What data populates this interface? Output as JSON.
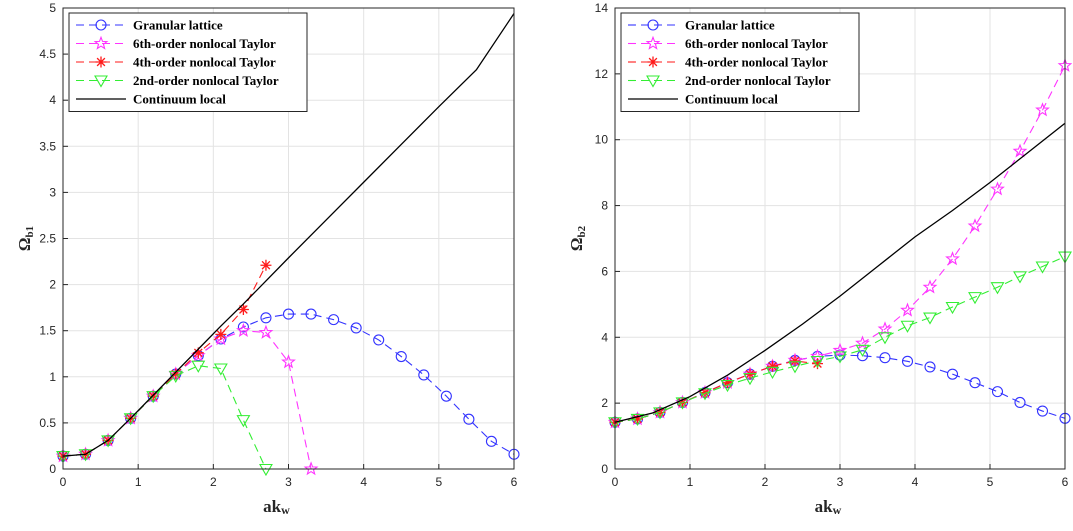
{
  "chart_data": [
    {
      "type": "line",
      "xlabel": "ak",
      "xlabel_sub": "w",
      "ylabel": "Ω",
      "ylabel_sub": "b1",
      "xlim": [
        0,
        6
      ],
      "ylim": [
        0,
        5
      ],
      "xticks": [
        0,
        1,
        2,
        3,
        4,
        5,
        6
      ],
      "xtick_labels": [
        "0",
        "1",
        "2",
        "3",
        "4",
        "5",
        "6"
      ],
      "yticks": [
        0,
        0.5,
        1,
        1.5,
        2,
        2.5,
        3,
        3.5,
        4,
        4.5,
        5
      ],
      "ytick_labels": [
        "0",
        "0.5",
        "1",
        "1.5",
        "2",
        "2.5",
        "3",
        "3.5",
        "4",
        "4.5",
        "5"
      ],
      "grid": true,
      "legend_position": "top-left",
      "series": [
        {
          "name": "Granular lattice",
          "color": "#3333ff",
          "marker": "circle",
          "dashed": true,
          "x": [
            0,
            0.3,
            0.6,
            0.9,
            1.2,
            1.5,
            1.8,
            2.1,
            2.4,
            2.7,
            3.0,
            3.3,
            3.6,
            3.9,
            4.2,
            4.5,
            4.8,
            5.1,
            5.4,
            5.7,
            6.0
          ],
          "y": [
            0.14,
            0.16,
            0.31,
            0.55,
            0.79,
            1.03,
            1.23,
            1.41,
            1.54,
            1.64,
            1.68,
            1.68,
            1.62,
            1.53,
            1.4,
            1.22,
            1.02,
            0.79,
            0.54,
            0.3,
            0.16
          ]
        },
        {
          "name": "6th-order nonlocal Taylor",
          "color": "#ff33ff",
          "marker": "star",
          "dashed": true,
          "x": [
            0,
            0.3,
            0.6,
            0.9,
            1.2,
            1.5,
            1.8,
            2.1,
            2.4,
            2.7,
            3.0,
            3.3
          ],
          "y": [
            0.14,
            0.16,
            0.31,
            0.55,
            0.79,
            1.03,
            1.23,
            1.41,
            1.5,
            1.48,
            1.16,
            0.0
          ]
        },
        {
          "name": "4th-order nonlocal Taylor",
          "color": "#ff1a1a",
          "marker": "asterisk",
          "dashed": true,
          "x": [
            0,
            0.3,
            0.6,
            0.9,
            1.2,
            1.5,
            1.8,
            2.1,
            2.4,
            2.7
          ],
          "y": [
            0.14,
            0.16,
            0.31,
            0.55,
            0.79,
            1.03,
            1.26,
            1.46,
            1.73,
            2.21
          ]
        },
        {
          "name": "2nd-order nonlocal Taylor",
          "color": "#33ee33",
          "marker": "triangle-down",
          "dashed": true,
          "x": [
            0,
            0.3,
            0.6,
            0.9,
            1.2,
            1.5,
            1.8,
            2.1,
            2.4,
            2.7
          ],
          "y": [
            0.14,
            0.16,
            0.31,
            0.55,
            0.79,
            1.01,
            1.12,
            1.09,
            0.53,
            0.0
          ]
        },
        {
          "name": "Continuum local",
          "color": "#000000",
          "marker": "none",
          "dashed": false,
          "x": [
            0,
            0.3,
            0.6,
            0.9,
            1.2,
            1.5,
            1.8,
            2.1,
            2.4,
            2.7,
            3.0,
            3.5,
            4.0,
            4.5,
            5.0,
            5.5,
            6.0
          ],
          "y": [
            0.14,
            0.16,
            0.31,
            0.55,
            0.8,
            1.05,
            1.3,
            1.55,
            1.79,
            2.04,
            2.29,
            2.7,
            3.11,
            3.52,
            3.93,
            4.33,
            4.94
          ]
        }
      ]
    },
    {
      "type": "line",
      "xlabel": "ak",
      "xlabel_sub": "w",
      "ylabel": "Ω",
      "ylabel_sub": "b2",
      "xlim": [
        0,
        6
      ],
      "ylim": [
        0,
        14
      ],
      "xticks": [
        0,
        1,
        2,
        3,
        4,
        5,
        6
      ],
      "xtick_labels": [
        "0",
        "1",
        "2",
        "3",
        "4",
        "5",
        "6"
      ],
      "yticks": [
        0,
        2,
        4,
        6,
        8,
        10,
        12,
        14
      ],
      "ytick_labels": [
        "0",
        "2",
        "4",
        "6",
        "8",
        "10",
        "12",
        "14"
      ],
      "grid": true,
      "legend_position": "top-left",
      "series": [
        {
          "name": "Granular lattice",
          "color": "#3333ff",
          "marker": "circle",
          "dashed": true,
          "x": [
            0,
            0.3,
            0.6,
            0.9,
            1.2,
            1.5,
            1.8,
            2.1,
            2.4,
            2.7,
            3.0,
            3.3,
            3.6,
            3.9,
            4.2,
            4.5,
            4.8,
            5.1,
            5.4,
            5.7,
            6.0
          ],
          "y": [
            1.42,
            1.52,
            1.72,
            2.02,
            2.32,
            2.62,
            2.88,
            3.12,
            3.3,
            3.42,
            3.46,
            3.44,
            3.38,
            3.27,
            3.1,
            2.88,
            2.62,
            2.35,
            2.02,
            1.76,
            1.54
          ]
        },
        {
          "name": "6th-order nonlocal Taylor",
          "color": "#ff33ff",
          "marker": "star",
          "dashed": true,
          "x": [
            0,
            0.3,
            0.6,
            0.9,
            1.2,
            1.5,
            1.8,
            2.1,
            2.4,
            2.7,
            3.0,
            3.3,
            3.6,
            3.9,
            4.2,
            4.5,
            4.8,
            5.1,
            5.4,
            5.7,
            6.0
          ],
          "y": [
            1.42,
            1.52,
            1.72,
            2.02,
            2.32,
            2.62,
            2.88,
            3.12,
            3.3,
            3.42,
            3.6,
            3.82,
            4.25,
            4.82,
            5.52,
            6.38,
            7.38,
            8.5,
            9.65,
            10.9,
            12.25
          ]
        },
        {
          "name": "4th-order nonlocal Taylor",
          "color": "#ff1a1a",
          "marker": "asterisk",
          "dashed": true,
          "x": [
            0,
            0.3,
            0.6,
            0.9,
            1.2,
            1.5,
            1.8,
            2.1,
            2.4,
            2.7
          ],
          "y": [
            1.42,
            1.52,
            1.72,
            2.02,
            2.32,
            2.62,
            2.88,
            3.12,
            3.28,
            3.2
          ]
        },
        {
          "name": "2nd-order nonlocal Taylor",
          "color": "#33ee33",
          "marker": "triangle-down",
          "dashed": true,
          "x": [
            0,
            0.3,
            0.6,
            0.9,
            1.2,
            1.5,
            1.8,
            2.1,
            2.4,
            2.7,
            3.0,
            3.3,
            3.6,
            3.9,
            4.2,
            4.5,
            4.8,
            5.1,
            5.4,
            5.7,
            6.0
          ],
          "y": [
            1.42,
            1.52,
            1.72,
            2.02,
            2.3,
            2.55,
            2.76,
            2.95,
            3.12,
            3.28,
            3.42,
            3.62,
            4.0,
            4.35,
            4.6,
            4.92,
            5.22,
            5.52,
            5.85,
            6.15,
            6.45
          ]
        },
        {
          "name": "Continuum local",
          "color": "#000000",
          "marker": "none",
          "dashed": false,
          "x": [
            0,
            0.5,
            1.0,
            1.5,
            2.0,
            2.5,
            3.0,
            3.5,
            4.0,
            4.5,
            5.0,
            5.5,
            6.0
          ],
          "y": [
            1.42,
            1.7,
            2.2,
            2.85,
            3.6,
            4.4,
            5.25,
            6.15,
            7.05,
            7.85,
            8.7,
            9.6,
            10.5
          ]
        }
      ]
    }
  ]
}
